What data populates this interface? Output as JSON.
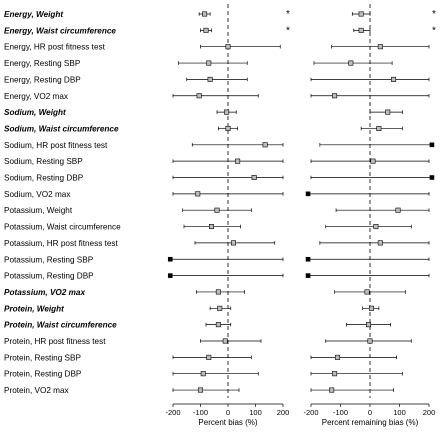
{
  "chart_data": [
    {
      "type": "forest",
      "xlabel": "Percent bias (%)",
      "xticks": [
        -200,
        -100,
        0,
        100,
        200
      ],
      "xlim": [
        -200,
        200
      ],
      "reference_line": 0,
      "rows": [
        {
          "label": "Energy, Weight",
          "bold": true,
          "point": -85,
          "low": -105,
          "high": -65,
          "star": "*"
        },
        {
          "label": "Energy, Waist circumference",
          "bold": true,
          "point": -80,
          "low": -100,
          "high": -60,
          "star": "*"
        },
        {
          "label": "Energy, HR post fitness test",
          "bold": false,
          "point": 0,
          "low": -100,
          "high": 190,
          "star": ""
        },
        {
          "label": "Energy, Resting SBP",
          "bold": false,
          "point": -70,
          "low": -180,
          "high": 70,
          "star": ""
        },
        {
          "label": "Energy, Resting DBP",
          "bold": false,
          "point": -65,
          "low": -150,
          "high": 70,
          "star": ""
        },
        {
          "label": "Energy, VO2 max",
          "bold": false,
          "point": -105,
          "low": -200,
          "high": 110,
          "star": ""
        },
        {
          "label": "Sodium, Weight",
          "bold": true,
          "point": -5,
          "low": -40,
          "high": 30,
          "star": ""
        },
        {
          "label": "Sodium, Waist circumference",
          "bold": true,
          "point": 0,
          "low": -35,
          "high": 35,
          "star": ""
        },
        {
          "label": "Sodium, HR post fitness test",
          "bold": false,
          "point": 135,
          "low": -130,
          "high": 200,
          "star": ""
        },
        {
          "label": "Sodium, Resting SBP",
          "bold": false,
          "point": 35,
          "low": -200,
          "high": 200,
          "star": ""
        },
        {
          "label": "Sodium, Resting DBP",
          "bold": false,
          "point": 95,
          "low": -200,
          "high": 200,
          "star": ""
        },
        {
          "label": "Sodium, VO2 max",
          "bold": false,
          "point": -110,
          "low": -200,
          "high": 200,
          "star": ""
        },
        {
          "label": "Potassium, Weight",
          "bold": false,
          "point": -40,
          "low": -165,
          "high": 85,
          "star": ""
        },
        {
          "label": "Potassium, Waist circumference",
          "bold": false,
          "point": -60,
          "low": -160,
          "high": 45,
          "star": ""
        },
        {
          "label": "Potassium, HR post fitness test",
          "bold": false,
          "point": 20,
          "low": -120,
          "high": 170,
          "star": ""
        },
        {
          "label": "Potassium, Resting SBP",
          "bold": false,
          "point": -210,
          "low": -210,
          "high": 200,
          "star": ""
        },
        {
          "label": "Potassium, Resting DBP",
          "bold": false,
          "point": -210,
          "low": -210,
          "high": 200,
          "star": ""
        },
        {
          "label": "Potassium, VO2 max",
          "bold": true,
          "point": -35,
          "low": -115,
          "high": 60,
          "star": ""
        },
        {
          "label": "Protein, Weight",
          "bold": true,
          "point": -30,
          "low": -65,
          "high": 10,
          "star": ""
        },
        {
          "label": "Protein, Waist circumference",
          "bold": true,
          "point": -35,
          "low": -80,
          "high": 10,
          "star": ""
        },
        {
          "label": "Protein, HR post fitness test",
          "bold": false,
          "point": -10,
          "low": -100,
          "high": 120,
          "star": ""
        },
        {
          "label": "Protein, Resting SBP",
          "bold": false,
          "point": -70,
          "low": -200,
          "high": 85,
          "star": ""
        },
        {
          "label": "Protein, Resting DBP",
          "bold": false,
          "point": -90,
          "low": -200,
          "high": 110,
          "star": ""
        },
        {
          "label": "Protein, VO2 max",
          "bold": false,
          "point": -100,
          "low": -200,
          "high": 40,
          "star": ""
        }
      ]
    },
    {
      "type": "forest",
      "xlabel": "Percent remaining bias (%)",
      "xticks": [
        -200,
        -100,
        0,
        100,
        200
      ],
      "xlim": [
        -200,
        200
      ],
      "reference_line": 0,
      "rows": [
        {
          "point": -30,
          "low": -60,
          "high": 0,
          "star": "*"
        },
        {
          "point": -30,
          "low": -55,
          "high": 0,
          "star": "*"
        },
        {
          "point": 35,
          "low": -130,
          "high": 200,
          "star": ""
        },
        {
          "point": -65,
          "low": -190,
          "high": 75,
          "star": ""
        },
        {
          "point": 80,
          "low": -200,
          "high": 200,
          "star": ""
        },
        {
          "point": -120,
          "low": -200,
          "high": 200,
          "star": ""
        },
        {
          "point": 60,
          "low": 0,
          "high": 110,
          "star": ""
        },
        {
          "point": 30,
          "low": -30,
          "high": 110,
          "star": ""
        },
        {
          "point": 210,
          "low": -170,
          "high": 210,
          "star": ""
        },
        {
          "point": 10,
          "low": -200,
          "high": 200,
          "star": ""
        },
        {
          "point": 210,
          "low": -200,
          "high": 210,
          "star": ""
        },
        {
          "point": -210,
          "low": -210,
          "high": 200,
          "star": ""
        },
        {
          "point": 95,
          "low": -115,
          "high": 200,
          "star": ""
        },
        {
          "point": 20,
          "low": -150,
          "high": 140,
          "star": ""
        },
        {
          "point": 35,
          "low": -170,
          "high": 200,
          "star": ""
        },
        {
          "point": -210,
          "low": -210,
          "high": 200,
          "star": ""
        },
        {
          "point": -210,
          "low": -210,
          "high": 200,
          "star": ""
        },
        {
          "point": -10,
          "low": -120,
          "high": 120,
          "star": ""
        },
        {
          "point": 5,
          "low": -25,
          "high": 30,
          "star": ""
        },
        {
          "point": -5,
          "low": -80,
          "high": 70,
          "star": ""
        },
        {
          "point": 0,
          "low": -150,
          "high": 140,
          "star": ""
        },
        {
          "point": -110,
          "low": -200,
          "high": 90,
          "star": ""
        },
        {
          "point": -120,
          "low": -200,
          "high": 110,
          "star": ""
        },
        {
          "point": -130,
          "low": -200,
          "high": 80,
          "star": ""
        }
      ]
    }
  ]
}
